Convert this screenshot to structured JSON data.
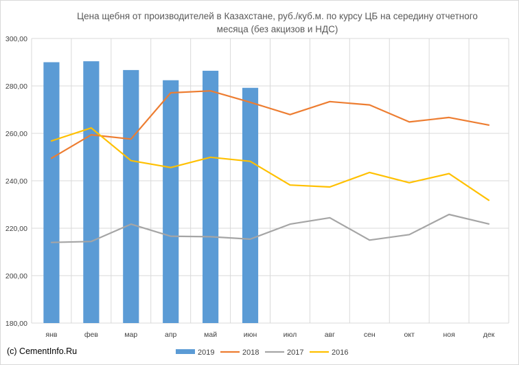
{
  "chart_data": {
    "type": "bar",
    "title_lines": [
      "Цена щебня от производителей в Казахстане, руб./куб.м. по курсу ЦБ на середину отчетного",
      "месяца (без акцизов и НДС)"
    ],
    "categories": [
      "янв",
      "фев",
      "мар",
      "апр",
      "май",
      "июн",
      "июл",
      "авг",
      "сен",
      "окт",
      "ноя",
      "дек"
    ],
    "ylim": [
      180,
      300
    ],
    "yticks": [
      180,
      200,
      220,
      240,
      260,
      280,
      300
    ],
    "ytick_labels": [
      "180,00",
      "200,00",
      "220,00",
      "240,00",
      "260,00",
      "280,00",
      "300,00"
    ],
    "grid": true,
    "legend_position": "bottom",
    "series": [
      {
        "name": "2019",
        "kind": "bar",
        "color": "#5b9bd5",
        "values": [
          290.0,
          290.4,
          286.7,
          282.4,
          286.4,
          279.2,
          null,
          null,
          null,
          null,
          null,
          null
        ]
      },
      {
        "name": "2018",
        "kind": "line",
        "color": "#ed7d31",
        "values": [
          249.5,
          259.4,
          257.6,
          277.1,
          277.9,
          273.1,
          267.9,
          273.4,
          272.0,
          264.8,
          266.7,
          263.5
        ]
      },
      {
        "name": "2017",
        "kind": "line",
        "color": "#a5a5a5",
        "values": [
          214.0,
          214.4,
          221.7,
          216.6,
          216.4,
          215.4,
          221.7,
          224.4,
          215.0,
          217.3,
          225.8,
          221.8
        ]
      },
      {
        "name": "2016",
        "kind": "line",
        "color": "#ffc000",
        "values": [
          256.8,
          262.3,
          248.5,
          245.6,
          249.9,
          248.2,
          238.2,
          237.4,
          243.5,
          239.2,
          243.0,
          231.8
        ]
      }
    ]
  },
  "watermark": "(c) CementInfo.Ru"
}
